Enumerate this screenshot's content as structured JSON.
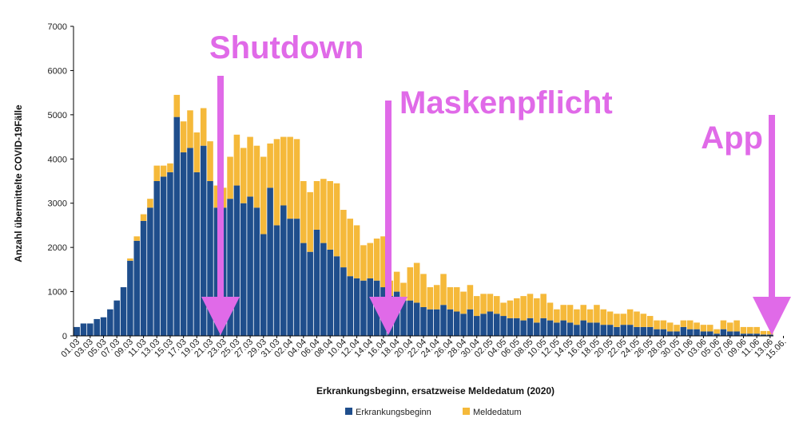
{
  "chart_data": {
    "type": "bar",
    "stacked": true,
    "xlabel": "Erkrankungsbeginn, ersatzweise Meldedatum (2020)",
    "ylabel": "Anzahl übermittelte COVID-19Fälle",
    "ylim": [
      0,
      7000
    ],
    "yticks": [
      0,
      1000,
      2000,
      3000,
      4000,
      5000,
      6000,
      7000
    ],
    "grid": false,
    "legend_position": "bottom-center",
    "colors": {
      "Erkrankungsbeginn": "#1f4e8c",
      "Meldedatum": "#f5b93a",
      "annotation": "#e06ae8",
      "axis": "#000000"
    },
    "x_tick_labels": [
      "01.03",
      "03.03",
      "05.03",
      "07.03",
      "09.03",
      "11.03",
      "13.03",
      "15.03",
      "17.03",
      "19.03",
      "21.03",
      "23.03",
      "25.03",
      "27.03",
      "29.03",
      "31.03",
      "02.04",
      "04.04",
      "06.04",
      "08.04",
      "10.04",
      "12.04",
      "14.04",
      "16.04",
      "18.04",
      "20.04",
      "22.04",
      "24.04",
      "26.04",
      "28.04",
      "30.04",
      "02.05",
      "04.05",
      "06.05",
      "08.05",
      "10.05",
      "12.05",
      "14.05",
      "16.05",
      "18.05",
      "20.05",
      "22.05",
      "24.05",
      "26.05",
      "28.05",
      "30.05",
      "01.06",
      "03.06",
      "05.06",
      "07.06",
      "09.06",
      "11.06",
      "13.06",
      "15.06."
    ],
    "series": [
      {
        "name": "Erkrankungsbeginn",
        "values": [
          200,
          280,
          280,
          380,
          420,
          600,
          800,
          1100,
          1700,
          2150,
          2600,
          2900,
          3500,
          3600,
          3700,
          4950,
          4150,
          4250,
          3700,
          4300,
          3500,
          2900,
          2900,
          3100,
          3400,
          3000,
          3150,
          2900,
          2300,
          3350,
          2500,
          2950,
          2650,
          2650,
          2100,
          1900,
          2400,
          2100,
          1950,
          1800,
          1550,
          1350,
          1300,
          1250,
          1300,
          1250,
          1100,
          900,
          1000,
          800,
          800,
          750,
          650,
          600,
          600,
          700,
          600,
          550,
          500,
          600,
          450,
          500,
          550,
          500,
          450,
          400,
          400,
          350,
          400,
          300,
          400,
          350,
          300,
          350,
          300,
          250,
          350,
          300,
          300,
          250,
          250,
          200,
          250,
          250,
          200,
          200,
          200,
          150,
          150,
          100,
          100,
          200,
          150,
          150,
          100,
          100,
          50,
          150,
          100,
          100,
          50,
          50,
          50,
          30,
          30
        ],
        "values_note": ""
      },
      {
        "name": "Meldedatum",
        "values": [
          0,
          0,
          0,
          0,
          0,
          0,
          0,
          0,
          50,
          100,
          150,
          200,
          350,
          250,
          200,
          500,
          700,
          850,
          900,
          850,
          900,
          500,
          450,
          950,
          1150,
          1250,
          1350,
          1400,
          1750,
          1000,
          1950,
          1550,
          1850,
          1800,
          1400,
          1350,
          1100,
          1450,
          1550,
          1650,
          1300,
          1300,
          1200,
          800,
          800,
          950,
          1150,
          350,
          450,
          400,
          750,
          900,
          750,
          500,
          550,
          700,
          500,
          550,
          500,
          550,
          450,
          450,
          400,
          400,
          300,
          400,
          450,
          550,
          550,
          550,
          550,
          400,
          300,
          350,
          400,
          350,
          350,
          300,
          400,
          350,
          300,
          300,
          250,
          350,
          350,
          300,
          250,
          200,
          200,
          200,
          150,
          150,
          200,
          150,
          150,
          150,
          100,
          200,
          200,
          250,
          150,
          150,
          150,
          80,
          80
        ]
      }
    ],
    "annotations": [
      {
        "text": "Shutdown",
        "at": "23.03"
      },
      {
        "text": "Maskenpflicht",
        "at": "18.04"
      },
      {
        "text": "App",
        "at": "16.06"
      }
    ]
  },
  "legend": {
    "items": [
      "Erkrankungsbeginn",
      "Meldedatum"
    ]
  }
}
